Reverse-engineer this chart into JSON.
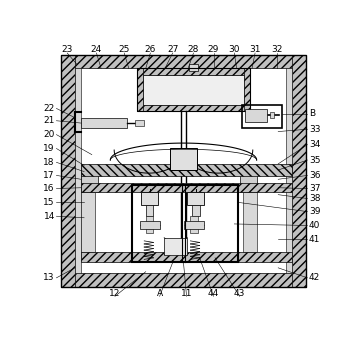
{
  "bg_color": "#f0f0f0",
  "line_color": "#000000",
  "wall_color": "#c8c8c8",
  "inner_color": "#e8e8e8",
  "font_size": 7.0
}
